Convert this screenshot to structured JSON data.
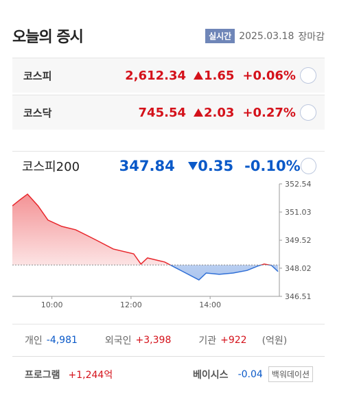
{
  "header": {
    "title": "오늘의 증시",
    "badge": "실시간",
    "date": "2025.03.18",
    "status": "장마감"
  },
  "indices": [
    {
      "name": "코스피",
      "value": "2,612.34",
      "change": "1.65",
      "rate": "+0.06%"
    },
    {
      "name": "코스닥",
      "value": "745.54",
      "change": "2.03",
      "rate": "+0.27%"
    }
  ],
  "selected": {
    "name": "코스피200",
    "value": "347.84",
    "change": "0.35",
    "rate": "-0.10%"
  },
  "chart_data": {
    "type": "line",
    "x": [
      540,
      552,
      563,
      579,
      594,
      615,
      636,
      667,
      693,
      724,
      735,
      745,
      771,
      797,
      823,
      834,
      854,
      875,
      896,
      912,
      922,
      933,
      943
    ],
    "series": [
      {
        "name": "코스피200",
        "color": "#e8262b",
        "values": [
          351.36,
          351.7,
          351.99,
          351.36,
          350.6,
          350.26,
          350.08,
          349.53,
          349.05,
          348.79,
          348.24,
          348.57,
          348.35,
          347.87,
          347.39,
          347.76,
          347.69,
          347.76,
          347.9,
          348.13,
          348.24,
          348.17,
          347.84
        ]
      }
    ],
    "baseline": 348.19,
    "down_color": "#2f6fd6",
    "xlim": [
      540,
      945
    ],
    "xticks": [
      {
        "value": 600,
        "label": "10:00"
      },
      {
        "value": 720,
        "label": "12:00"
      },
      {
        "value": 840,
        "label": "14:00"
      }
    ],
    "ylim": [
      346.51,
      352.54
    ],
    "yticks": [
      346.51,
      348.02,
      349.52,
      351.03,
      352.54
    ]
  },
  "investors": {
    "items": [
      {
        "label": "개인",
        "value": "-4,981"
      },
      {
        "label": "외국인",
        "value": "+3,398"
      },
      {
        "label": "기관",
        "value": "+922"
      }
    ],
    "unit": "(억원)"
  },
  "program": {
    "label": "프로그램",
    "value": "+1,244억",
    "basis_label": "베이시스",
    "basis_value": "-0.04",
    "basis_state": "백워데이션"
  }
}
